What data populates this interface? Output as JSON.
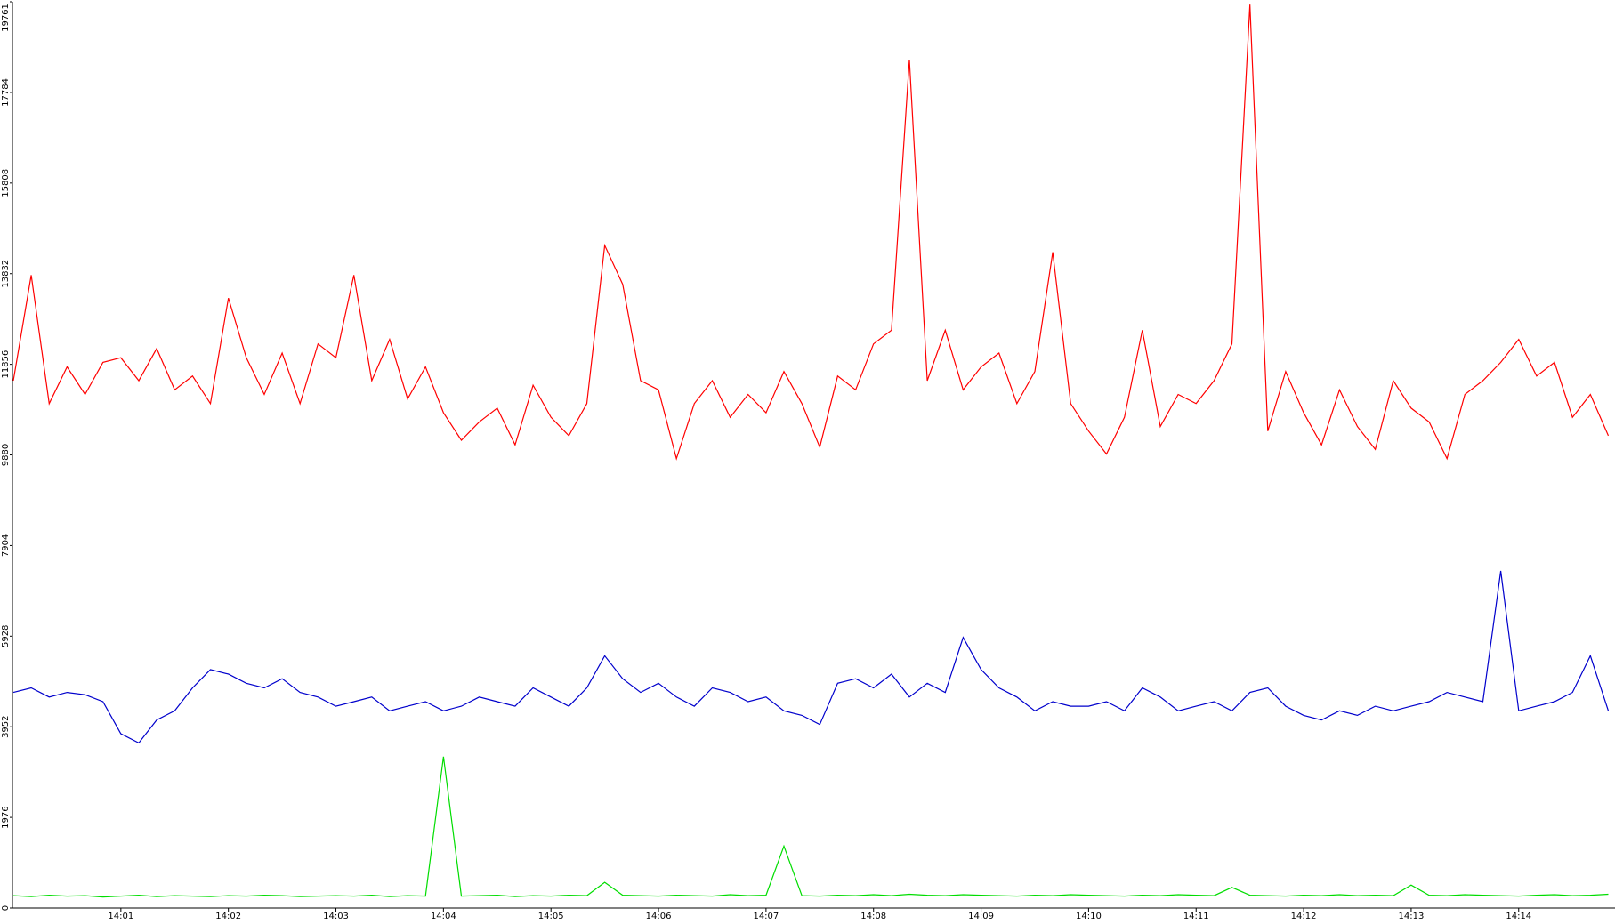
{
  "chart_data": {
    "type": "line",
    "categories": [
      null,
      null,
      null,
      null,
      null,
      null,
      "14:01",
      null,
      null,
      null,
      null,
      null,
      "14:02",
      null,
      null,
      null,
      null,
      null,
      "14:03",
      null,
      null,
      null,
      null,
      null,
      "14:04",
      null,
      null,
      null,
      null,
      null,
      "14:05",
      null,
      null,
      null,
      null,
      null,
      "14:06",
      null,
      null,
      null,
      null,
      null,
      "14:07",
      null,
      null,
      null,
      null,
      null,
      "14:08",
      null,
      null,
      null,
      null,
      null,
      "14:09",
      null,
      null,
      null,
      null,
      null,
      "14:10",
      null,
      null,
      null,
      null,
      null,
      "14:11",
      null,
      null,
      null,
      null,
      null,
      "14:12",
      null,
      null,
      null,
      null,
      null,
      "14:13",
      null,
      null,
      null,
      null,
      null,
      "14:14",
      null,
      null,
      null,
      null,
      null
    ],
    "series": [
      {
        "color": "#ff0000",
        "values": [
          11500,
          13800,
          11000,
          11800,
          11200,
          11900,
          12000,
          11500,
          12200,
          11300,
          11600,
          11000,
          13300,
          12000,
          11200,
          12100,
          11000,
          12300,
          12000,
          13800,
          11500,
          12400,
          11100,
          11800,
          10800,
          10200,
          10600,
          10900,
          10100,
          11400,
          10700,
          10300,
          11000,
          14450,
          13600,
          11500,
          11300,
          9800,
          11000,
          11500,
          10700,
          11200,
          10800,
          11700,
          11000,
          10050,
          11600,
          11300,
          12300,
          12600,
          18500,
          11500,
          12600,
          11300,
          11800,
          12100,
          11000,
          11700,
          14300,
          11000,
          10400,
          9900,
          10700,
          12600,
          10500,
          11200,
          11000,
          11500,
          12300,
          19700,
          10400,
          11700,
          10800,
          10100,
          11300,
          10500,
          10000,
          11500,
          10900,
          10600,
          9800,
          11200,
          11500,
          11900,
          12400,
          11600,
          11900,
          10700,
          11200,
          10300
        ]
      },
      {
        "color": "#0000cc",
        "values": [
          4700,
          4800,
          4600,
          4700,
          4650,
          4500,
          3800,
          3600,
          4100,
          4300,
          4800,
          5200,
          5100,
          4900,
          4800,
          5000,
          4700,
          4600,
          4400,
          4500,
          4600,
          4300,
          4400,
          4500,
          4300,
          4400,
          4600,
          4500,
          4400,
          4800,
          4600,
          4400,
          4800,
          5500,
          5000,
          4700,
          4900,
          4600,
          4400,
          4800,
          4700,
          4500,
          4600,
          4300,
          4200,
          4000,
          4900,
          5000,
          4800,
          5100,
          4600,
          4900,
          4700,
          5900,
          5200,
          4800,
          4600,
          4300,
          4500,
          4400,
          4400,
          4500,
          4300,
          4800,
          4600,
          4300,
          4400,
          4500,
          4300,
          4700,
          4800,
          4400,
          4200,
          4100,
          4300,
          4200,
          4400,
          4300,
          4400,
          4500,
          4700,
          4600,
          4500,
          7350,
          4300,
          4400,
          4500,
          4700,
          5500,
          4300
        ]
      },
      {
        "color": "#00dd00",
        "values": [
          270,
          250,
          280,
          260,
          270,
          240,
          260,
          280,
          250,
          270,
          260,
          250,
          270,
          260,
          280,
          270,
          250,
          260,
          270,
          260,
          280,
          250,
          270,
          260,
          3300,
          260,
          270,
          280,
          250,
          270,
          260,
          280,
          270,
          560,
          280,
          270,
          260,
          280,
          270,
          260,
          290,
          270,
          280,
          1350,
          270,
          260,
          280,
          270,
          290,
          270,
          300,
          280,
          270,
          290,
          280,
          270,
          260,
          280,
          270,
          290,
          280,
          270,
          260,
          280,
          270,
          290,
          280,
          270,
          450,
          280,
          270,
          260,
          280,
          270,
          290,
          270,
          280,
          270,
          500,
          280,
          270,
          290,
          280,
          270,
          260,
          280,
          290,
          270,
          280,
          300
        ]
      }
    ],
    "ylim": [
      0,
      19761
    ],
    "yticks": [
      0,
      1976,
      3952,
      5928,
      7904,
      9880,
      11856,
      13832,
      15808,
      17784,
      19761
    ]
  }
}
